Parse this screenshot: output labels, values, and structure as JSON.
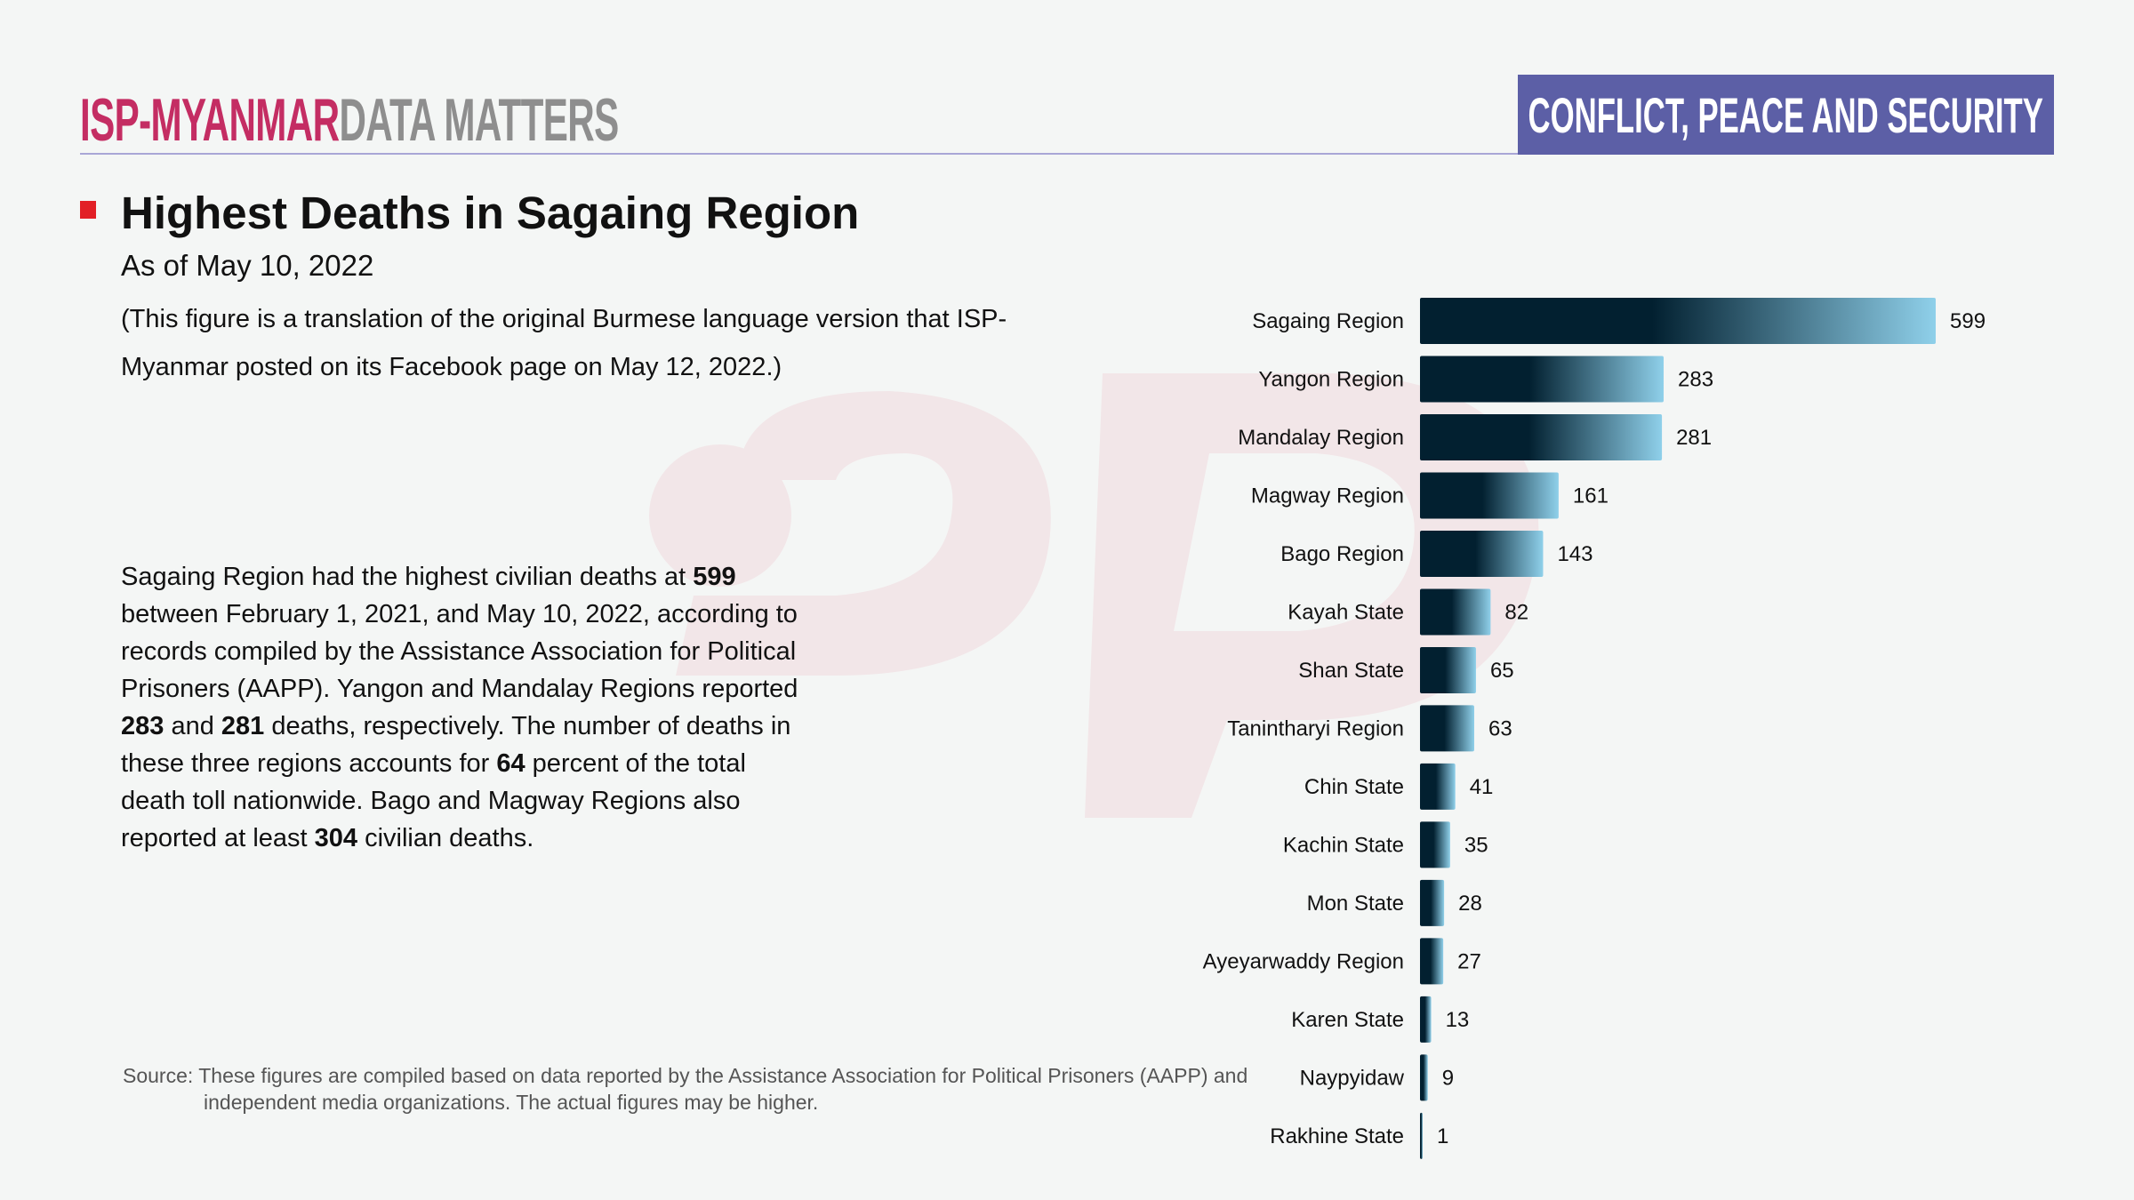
{
  "header": {
    "brand_primary": "ISP-MYANMAR",
    "brand_secondary": "DATA MATTERS",
    "category": "CONFLICT, PEACE AND SECURITY"
  },
  "title": "Highest Deaths in Sagaing Region",
  "subtitle": "As of May 10, 2022",
  "note": "(This figure is a translation of the original Burmese language version that ISP-Myanmar posted on its Facebook page on May 12, 2022.)",
  "summary": {
    "p1": "Sagaing Region had the highest civilian deaths at ",
    "n1": "599",
    "p2": " between February 1, 2021, and May 10, 2022, according to records compiled by the Assistance Association for Political Prisoners (AAPP). Yangon and Mandalay Regions reported ",
    "n2": "283",
    "p3": " and ",
    "n3": "281",
    "p4": " deaths, respectively. The number of deaths in these three regions accounts for ",
    "n4": "64",
    "p5": " percent of the total death toll nationwide. Bago and Magway Regions also reported at least ",
    "n5": "304",
    "p6": " civilian deaths."
  },
  "source": {
    "line1": "Source: These figures are compiled based on data reported by the Assistance Association for Political Prisoners (AAPP) and",
    "line2": "independent media organizations. The actual figures may be higher."
  },
  "colors": {
    "brand": "#c42d63",
    "badge": "#5c5fa6",
    "bar_dark": "#022030",
    "bar_light": "#8fd0ea",
    "marker": "#e21f26"
  },
  "chart_data": {
    "type": "bar",
    "orientation": "horizontal",
    "categories": [
      "Sagaing Region",
      "Yangon Region",
      "Mandalay Region",
      "Magway Region",
      "Bago Region",
      "Kayah State",
      "Shan State",
      "Tanintharyi Region",
      "Chin State",
      "Kachin State",
      "Mon State",
      "Ayeyarwaddy Region",
      "Karen State",
      "Naypyidaw",
      "Rakhine State"
    ],
    "values": [
      599,
      283,
      281,
      161,
      143,
      82,
      65,
      63,
      41,
      35,
      28,
      27,
      13,
      9,
      1
    ],
    "xlim": [
      0,
      599
    ],
    "grid": false,
    "data_labels": true
  }
}
